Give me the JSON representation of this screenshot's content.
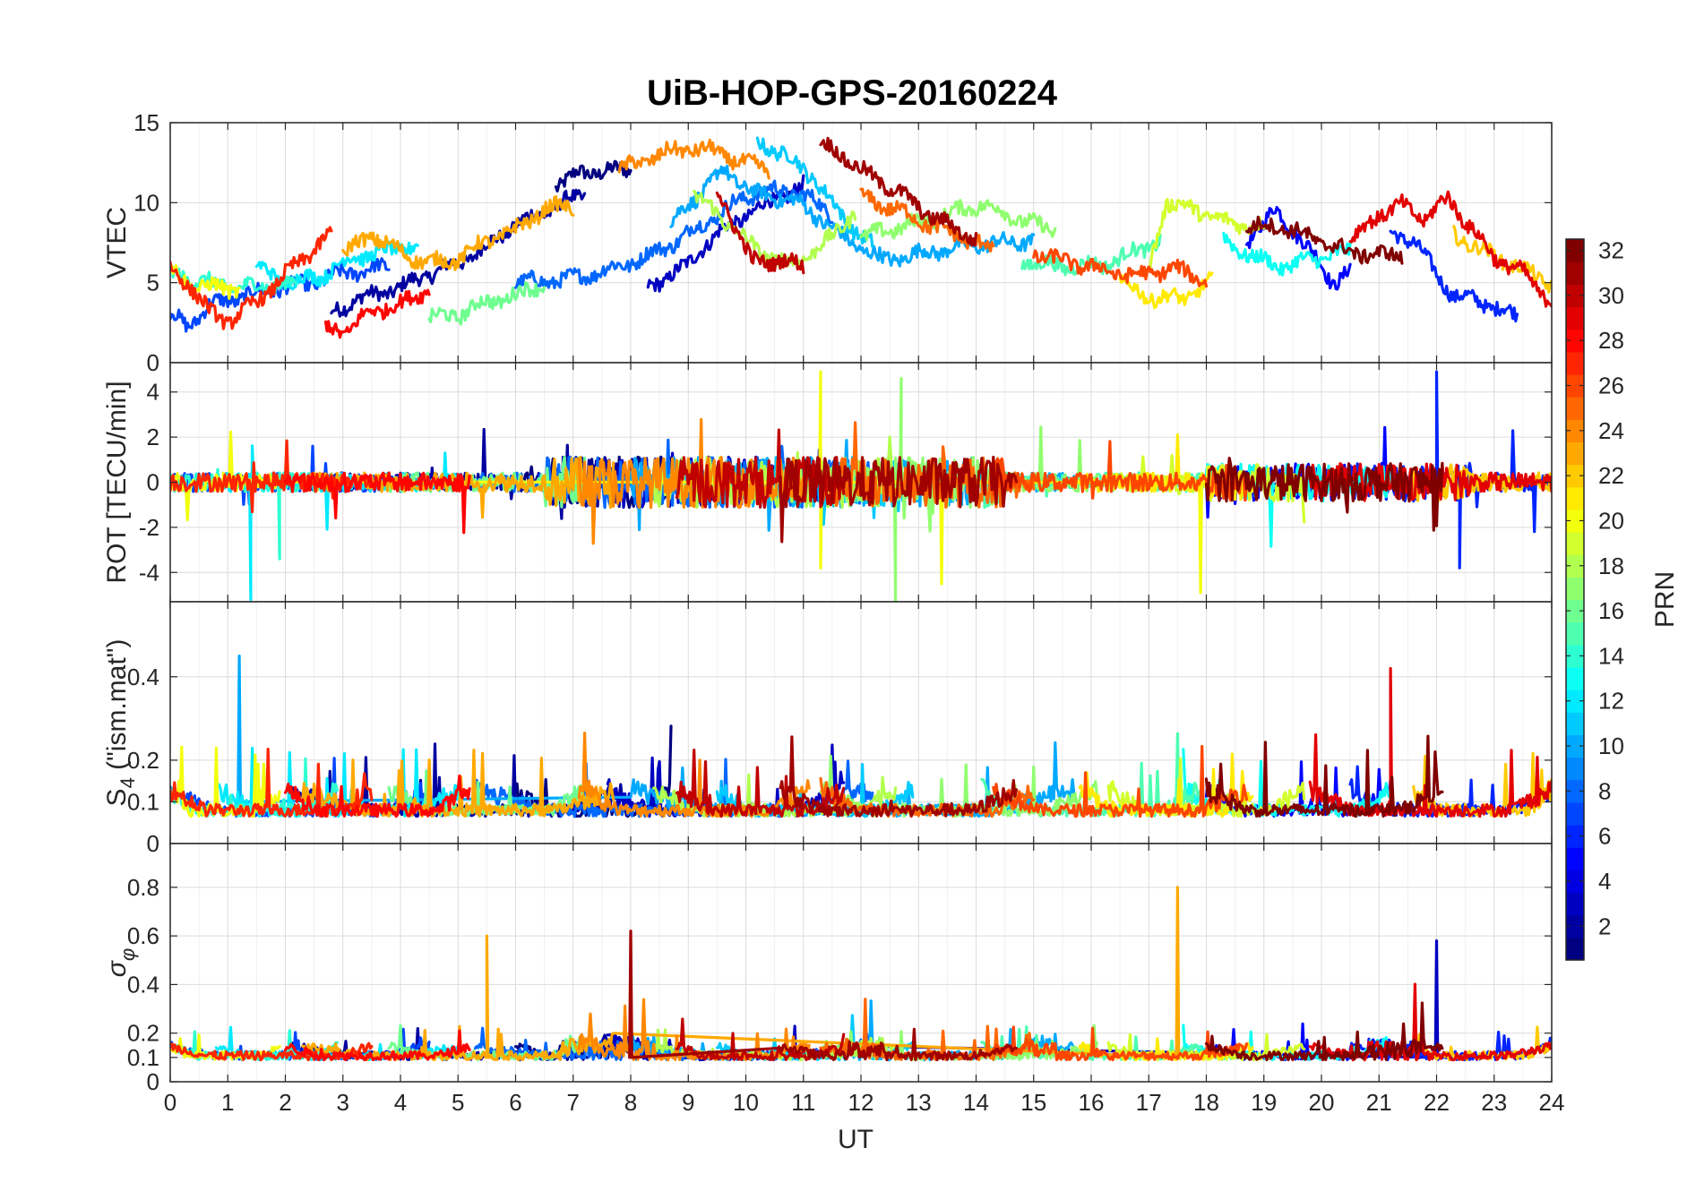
{
  "chart_data": {
    "type": "line",
    "title": "UiB-HOP-GPS-20160224",
    "xlabel": "UT",
    "xlim": [
      0,
      24
    ],
    "xticks": [
      0,
      1,
      2,
      3,
      4,
      5,
      6,
      7,
      8,
      9,
      10,
      11,
      12,
      13,
      14,
      15,
      16,
      17,
      18,
      19,
      20,
      21,
      22,
      23,
      24
    ],
    "grid": true,
    "colormap": "jet",
    "colorbar": {
      "label": "PRN",
      "range": [
        1,
        32
      ],
      "ticks": [
        2,
        4,
        6,
        8,
        10,
        12,
        14,
        16,
        18,
        20,
        22,
        24,
        26,
        28,
        30,
        32
      ],
      "placement": "right"
    },
    "panels": [
      {
        "id": "vtec",
        "ylabel": "VTEC",
        "ylim": [
          0,
          15
        ],
        "yticks": [
          0,
          5,
          10,
          15
        ]
      },
      {
        "id": "rot",
        "ylabel": "ROT [TECU/min]",
        "ylim": [
          -5.3,
          5.3
        ],
        "yticks": [
          -4,
          -2,
          0,
          2,
          4
        ]
      },
      {
        "id": "s4",
        "ylabel": "S4 (\"ism.mat\")",
        "ylabel_main": "S",
        "ylabel_sub": "4",
        "ylabel_rest": " (\"ism.mat\")",
        "ylim": [
          0,
          0.58
        ],
        "yticks": [
          0,
          0.1,
          0.2,
          0.4
        ]
      },
      {
        "id": "sigma",
        "ylabel": "σ_φ",
        "ylabel_main": "σ",
        "ylabel_sub": "φ",
        "ylim": [
          0,
          0.98
        ],
        "yticks": [
          0,
          0.1,
          0.2,
          0.4,
          0.6,
          0.8
        ]
      }
    ],
    "series": [
      {
        "name": "PRN 1",
        "prn": 1,
        "vtec": [
          [
            6.7,
            11.1
          ],
          [
            7.1,
            11.8
          ],
          [
            7.5,
            12.0
          ],
          [
            8.0,
            12.0
          ]
        ]
      },
      {
        "name": "PRN 2",
        "prn": 2,
        "vtec": [
          [
            2.8,
            3.1
          ],
          [
            3.2,
            3.9
          ],
          [
            3.6,
            4.3
          ],
          [
            4.0,
            4.7
          ],
          [
            4.4,
            5.4
          ],
          [
            5.0,
            6.2
          ],
          [
            5.6,
            7.5
          ],
          [
            6.0,
            8.7
          ],
          [
            6.4,
            9.2
          ],
          [
            6.8,
            10.0
          ],
          [
            7.2,
            10.4
          ]
        ]
      },
      {
        "name": "PRN 3",
        "prn": 3,
        "vtec": [
          [
            8.3,
            4.7
          ],
          [
            8.6,
            5.3
          ],
          [
            9.0,
            6.1
          ],
          [
            9.2,
            7.1
          ],
          [
            9.5,
            8.0
          ],
          [
            10.0,
            9.2
          ],
          [
            10.4,
            10.0
          ],
          [
            11.0,
            11.0
          ]
        ],
        "sigma_spike": [
          [
            22.0,
            0.58
          ]
        ]
      },
      {
        "name": "PRN 5",
        "prn": 5,
        "vtec": [
          [
            18.7,
            7.6
          ],
          [
            19.2,
            9.5
          ],
          [
            19.6,
            8.0
          ],
          [
            20.2,
            5.0
          ],
          [
            20.5,
            5.8
          ]
        ]
      },
      {
        "name": "PRN 6",
        "prn": 6,
        "vtec": [
          [
            21.2,
            8.0
          ],
          [
            21.6,
            7.7
          ],
          [
            22.0,
            5.5
          ],
          [
            22.3,
            4.2
          ],
          [
            22.8,
            3.8
          ],
          [
            23.4,
            2.9
          ]
        ],
        "rot_spike": [
          [
            22.0,
            4.9
          ],
          [
            22.4,
            -3.8
          ]
        ]
      },
      {
        "name": "PRN 7",
        "prn": 7,
        "vtec": [
          [
            0.0,
            3.0
          ],
          [
            0.3,
            2.3
          ],
          [
            0.7,
            3.6
          ],
          [
            1.2,
            4.1
          ],
          [
            1.8,
            4.6
          ],
          [
            2.5,
            5.0
          ],
          [
            3.0,
            5.6
          ],
          [
            3.8,
            6.0
          ]
        ]
      },
      {
        "name": "PRN 8",
        "prn": 8,
        "vtec": [
          [
            6.0,
            5.0
          ],
          [
            6.9,
            5.2
          ],
          [
            7.6,
            5.8
          ],
          [
            8.2,
            6.5
          ],
          [
            8.8,
            7.6
          ],
          [
            9.4,
            9.0
          ],
          [
            10.0,
            10.4
          ],
          [
            10.5,
            10.8
          ],
          [
            11.0,
            10.5
          ],
          [
            11.5,
            9.3
          ]
        ]
      },
      {
        "name": "PRN 10",
        "prn": 10,
        "vtec": [
          [
            8.7,
            8.7
          ],
          [
            9.2,
            10.6
          ],
          [
            9.6,
            12.0
          ],
          [
            10.2,
            10.5
          ],
          [
            10.8,
            10.2
          ],
          [
            11.3,
            9.0
          ],
          [
            11.7,
            7.8
          ],
          [
            12.4,
            6.4
          ],
          [
            13.0,
            6.8
          ],
          [
            14.0,
            7.4
          ],
          [
            15.0,
            7.6
          ]
        ],
        "s4_spike": [
          [
            1.2,
            0.45
          ]
        ]
      },
      {
        "name": "PRN 11",
        "prn": 11,
        "vtec": [
          [
            10.2,
            13.7
          ],
          [
            10.6,
            13.2
          ],
          [
            11.2,
            11.5
          ],
          [
            11.7,
            9.0
          ],
          [
            12.2,
            7.3
          ]
        ]
      },
      {
        "name": "PRN 12",
        "prn": 12,
        "vtec": [
          [
            1.5,
            6.0
          ],
          [
            2.0,
            5.0
          ],
          [
            2.6,
            5.4
          ],
          [
            3.2,
            6.6
          ],
          [
            3.8,
            7.0
          ],
          [
            4.3,
            7.4
          ]
        ],
        "rot_spike": [
          [
            1.4,
            -5.2
          ]
        ]
      },
      {
        "name": "PRN 13",
        "prn": 13,
        "vtec": [
          [
            18.3,
            7.7
          ],
          [
            18.8,
            6.6
          ],
          [
            19.3,
            6.0
          ],
          [
            20.0,
            6.6
          ],
          [
            20.5,
            6.9
          ]
        ]
      },
      {
        "name": "PRN 14",
        "prn": 14,
        "vtec": [
          [
            0.0,
            5.6
          ],
          [
            0.5,
            5.1
          ],
          [
            1.1,
            4.7
          ],
          [
            1.6,
            4.8
          ],
          [
            2.2,
            5.0
          ]
        ],
        "rot_spike": [
          [
            1.9,
            -3.4
          ]
        ]
      },
      {
        "name": "PRN 15",
        "prn": 15,
        "vtec": [
          [
            14.8,
            6.3
          ],
          [
            15.5,
            6.0
          ],
          [
            16.2,
            6.1
          ],
          [
            16.8,
            7.0
          ],
          [
            17.2,
            7.6
          ]
        ]
      },
      {
        "name": "PRN 16",
        "prn": 16,
        "vtec": [
          [
            4.5,
            2.8
          ],
          [
            5.0,
            3.0
          ],
          [
            5.5,
            3.8
          ],
          [
            6.0,
            4.2
          ],
          [
            6.5,
            5.0
          ]
        ]
      },
      {
        "name": "PRN 17",
        "prn": 17,
        "vtec": [
          [
            12.0,
            7.8
          ],
          [
            12.8,
            8.6
          ],
          [
            13.5,
            9.3
          ],
          [
            14.1,
            9.9
          ],
          [
            14.8,
            8.9
          ],
          [
            15.4,
            8.2
          ]
        ],
        "rot_spike": [
          [
            12.6,
            -5.3
          ],
          [
            12.7,
            4.6
          ]
        ]
      },
      {
        "name": "PRN 18",
        "prn": 18,
        "vtec": [
          [
            9.1,
            10.5
          ],
          [
            9.6,
            9.0
          ],
          [
            10.2,
            7.0
          ],
          [
            10.8,
            6.1
          ],
          [
            11.5,
            7.8
          ],
          [
            11.9,
            9.5
          ]
        ]
      },
      {
        "name": "PRN 19",
        "prn": 19,
        "vtec": [
          [
            17.0,
            5.9
          ],
          [
            17.3,
            10.0
          ],
          [
            17.8,
            9.6
          ],
          [
            18.3,
            8.8
          ],
          [
            19.0,
            8.5
          ]
        ]
      },
      {
        "name": "PRN 20",
        "prn": 20,
        "vtec": [
          [
            0.0,
            5.8
          ],
          [
            0.4,
            4.8
          ],
          [
            0.8,
            4.7
          ],
          [
            1.2,
            4.6
          ]
        ],
        "rot_spike": [
          [
            11.3,
            4.9
          ],
          [
            11.3,
            -3.8
          ],
          [
            13.4,
            -4.5
          ],
          [
            17.9,
            -4.9
          ]
        ]
      },
      {
        "name": "PRN 21",
        "prn": 21,
        "vtec": [
          [
            16.5,
            5.0
          ],
          [
            17.0,
            4.1
          ],
          [
            17.6,
            4.0
          ],
          [
            18.1,
            5.1
          ]
        ]
      },
      {
        "name": "PRN 22",
        "prn": 22,
        "vtec": [
          [
            22.3,
            8.0
          ],
          [
            22.8,
            7.0
          ],
          [
            23.4,
            6.0
          ],
          [
            24.0,
            4.9
          ]
        ]
      },
      {
        "name": "PRN 23",
        "prn": 23,
        "vtec": [
          [
            3.0,
            6.8
          ],
          [
            3.5,
            8.0
          ],
          [
            4.0,
            6.9
          ],
          [
            4.5,
            6.2
          ],
          [
            5.0,
            6.5
          ],
          [
            5.5,
            7.6
          ],
          [
            6.0,
            8.3
          ],
          [
            6.5,
            9.6
          ],
          [
            7.0,
            9.8
          ]
        ],
        "sigma_spike": [
          [
            5.5,
            0.6
          ],
          [
            17.5,
            0.8
          ]
        ]
      },
      {
        "name": "PRN 24",
        "prn": 24,
        "vtec": [
          [
            7.8,
            12.0
          ],
          [
            8.2,
            12.6
          ],
          [
            8.6,
            13.1
          ],
          [
            9.0,
            13.4
          ],
          [
            9.5,
            13.2
          ],
          [
            10.0,
            12.4
          ],
          [
            10.4,
            12.2
          ]
        ]
      },
      {
        "name": "PRN 25",
        "prn": 25,
        "vtec": [
          [
            12.0,
            10.3
          ],
          [
            12.6,
            9.6
          ],
          [
            13.2,
            8.6
          ],
          [
            13.8,
            7.8
          ],
          [
            14.3,
            7.1
          ]
        ]
      },
      {
        "name": "PRN 26",
        "prn": 26,
        "vtec": [
          [
            15.0,
            6.8
          ],
          [
            15.6,
            6.3
          ],
          [
            16.2,
            5.8
          ],
          [
            16.8,
            5.4
          ],
          [
            17.4,
            5.9
          ],
          [
            18.0,
            5.2
          ]
        ]
      },
      {
        "name": "PRN 27",
        "prn": 27,
        "vtec": [
          [
            0.0,
            5.8
          ],
          [
            0.3,
            5.0
          ],
          [
            0.7,
            3.1
          ],
          [
            1.0,
            2.6
          ],
          [
            1.4,
            3.5
          ],
          [
            1.8,
            4.8
          ],
          [
            2.3,
            6.5
          ],
          [
            2.8,
            8.0
          ]
        ]
      },
      {
        "name": "PRN 28",
        "prn": 28,
        "vtec": [
          [
            2.7,
            2.2
          ],
          [
            3.1,
            2.0
          ],
          [
            3.5,
            3.3
          ],
          [
            4.0,
            3.6
          ],
          [
            4.5,
            4.7
          ]
        ]
      },
      {
        "name": "PRN 29",
        "prn": 29,
        "vtec": [
          [
            20.5,
            7.6
          ],
          [
            21.0,
            9.3
          ],
          [
            21.4,
            9.8
          ],
          [
            21.8,
            9.0
          ],
          [
            22.2,
            10.3
          ],
          [
            22.6,
            8.4
          ],
          [
            23.0,
            6.6
          ],
          [
            23.5,
            5.6
          ],
          [
            24.0,
            3.8
          ]
        ],
        "s4_spike": [
          [
            21.2,
            0.42
          ]
        ]
      },
      {
        "name": "PRN 30",
        "prn": 30,
        "vtec": [
          [
            9.5,
            10.7
          ],
          [
            9.8,
            8.7
          ],
          [
            10.1,
            6.3
          ],
          [
            10.6,
            6.4
          ],
          [
            11.0,
            6.0
          ]
        ]
      },
      {
        "name": "PRN 31",
        "prn": 31,
        "vtec": [
          [
            11.3,
            13.6
          ],
          [
            11.6,
            13.2
          ],
          [
            12.0,
            12.0
          ],
          [
            12.6,
            10.8
          ],
          [
            13.2,
            9.2
          ],
          [
            14.0,
            7.7
          ]
        ],
        "sigma_spike": [
          [
            8.0,
            0.62
          ]
        ]
      },
      {
        "name": "PRN 32",
        "prn": 32,
        "vtec": [
          [
            18.7,
            8.4
          ],
          [
            19.2,
            8.6
          ],
          [
            19.7,
            8.0
          ],
          [
            20.4,
            7.0
          ],
          [
            21.0,
            6.7
          ],
          [
            21.4,
            6.8
          ]
        ]
      }
    ]
  }
}
